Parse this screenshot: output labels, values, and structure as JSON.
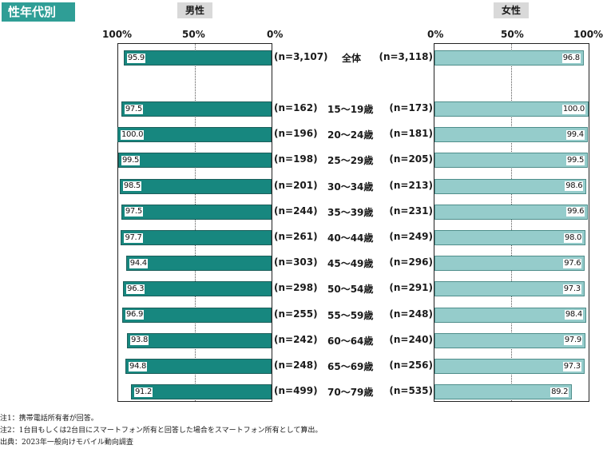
{
  "header": {
    "badge": "性年代別",
    "male_label": "男性",
    "female_label": "女性"
  },
  "ticks": {
    "male": [
      "100%",
      "50%",
      "0%"
    ],
    "female": [
      "0%",
      "50%",
      "100%"
    ]
  },
  "colors": {
    "male_bar": "#17877f",
    "female_bar": "#95cccb",
    "badge": "#2f9e96"
  },
  "chart_data": {
    "type": "bar",
    "categories": [
      "全体",
      "15～19歳",
      "20～24歳",
      "25～29歳",
      "30～34歳",
      "35～39歳",
      "40～44歳",
      "45～49歳",
      "50～54歳",
      "55～59歳",
      "60～64歳",
      "65～69歳",
      "70～79歳"
    ],
    "xlim": [
      0,
      100
    ],
    "series": [
      {
        "name": "男性",
        "values": [
          95.9,
          97.5,
          100.0,
          99.5,
          98.5,
          97.5,
          97.7,
          94.4,
          96.3,
          96.9,
          93.8,
          94.8,
          91.2
        ],
        "labels": [
          "95.9",
          "97.5",
          "100.0",
          "99.5",
          "98.5",
          "97.5",
          "97.7",
          "94.4",
          "96.3",
          "96.9",
          "93.8",
          "94.8",
          "91.2"
        ],
        "n": [
          "(n=3,107)",
          "(n=162)",
          "(n=196)",
          "(n=198)",
          "(n=201)",
          "(n=244)",
          "(n=261)",
          "(n=303)",
          "(n=298)",
          "(n=255)",
          "(n=242)",
          "(n=248)",
          "(n=499)"
        ]
      },
      {
        "name": "女性",
        "values": [
          96.8,
          100.0,
          99.4,
          99.5,
          98.6,
          99.6,
          98.0,
          97.6,
          97.3,
          98.4,
          97.9,
          97.3,
          89.2
        ],
        "labels": [
          "96.8",
          "100.0",
          "99.4",
          "99.5",
          "98.6",
          "99.6",
          "98.0",
          "97.6",
          "97.3",
          "98.4",
          "97.9",
          "97.3",
          "89.2"
        ],
        "n": [
          "(n=3,118)",
          "(n=173)",
          "(n=181)",
          "(n=205)",
          "(n=213)",
          "(n=231)",
          "(n=249)",
          "(n=296)",
          "(n=291)",
          "(n=248)",
          "(n=240)",
          "(n=256)",
          "(n=535)"
        ]
      }
    ]
  },
  "notes": [
    "注1：携帯電話所有者が回答。",
    "注2：1台目もしくは2台目にスマートフォン所有と回答した場合をスマートフォン所有として算出。",
    "出典：2023年一般向けモバイル動向調査"
  ]
}
